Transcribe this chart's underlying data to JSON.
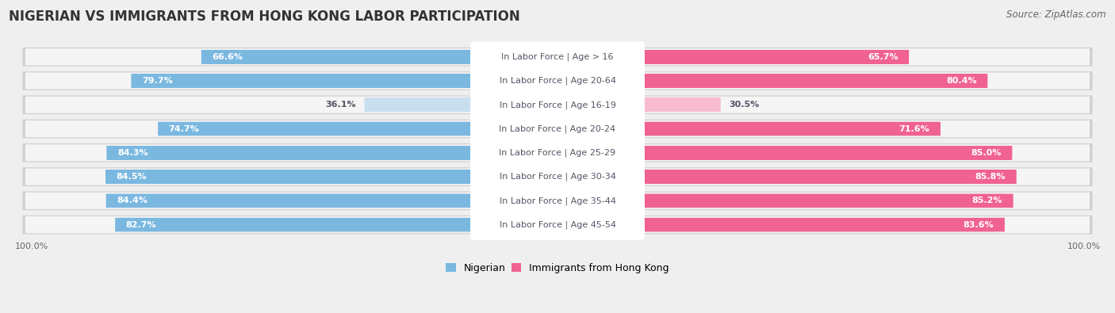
{
  "title": "NIGERIAN VS IMMIGRANTS FROM HONG KONG LABOR PARTICIPATION",
  "source": "Source: ZipAtlas.com",
  "categories": [
    "In Labor Force | Age > 16",
    "In Labor Force | Age 20-64",
    "In Labor Force | Age 16-19",
    "In Labor Force | Age 20-24",
    "In Labor Force | Age 25-29",
    "In Labor Force | Age 30-34",
    "In Labor Force | Age 35-44",
    "In Labor Force | Age 45-54"
  ],
  "nigerian_values": [
    66.6,
    79.7,
    36.1,
    74.7,
    84.3,
    84.5,
    84.4,
    82.7
  ],
  "hk_values": [
    65.7,
    80.4,
    30.5,
    71.6,
    85.0,
    85.8,
    85.2,
    83.6
  ],
  "nigerian_color": "#7ab8e0",
  "nigerian_light_color": "#c8dff0",
  "hk_color": "#f06292",
  "hk_light_color": "#f8bbd0",
  "row_bg_color": "#e8e8e8",
  "row_inner_bg": "#f5f5f5",
  "white_label_bg": "#ffffff",
  "label_dark": "#555566",
  "label_white": "#ffffff",
  "bg_color": "#efefef",
  "max_value": 100.0,
  "title_fontsize": 12,
  "source_fontsize": 8.5,
  "value_fontsize": 8,
  "cat_fontsize": 8,
  "legend_fontsize": 9,
  "low_threshold": 50
}
